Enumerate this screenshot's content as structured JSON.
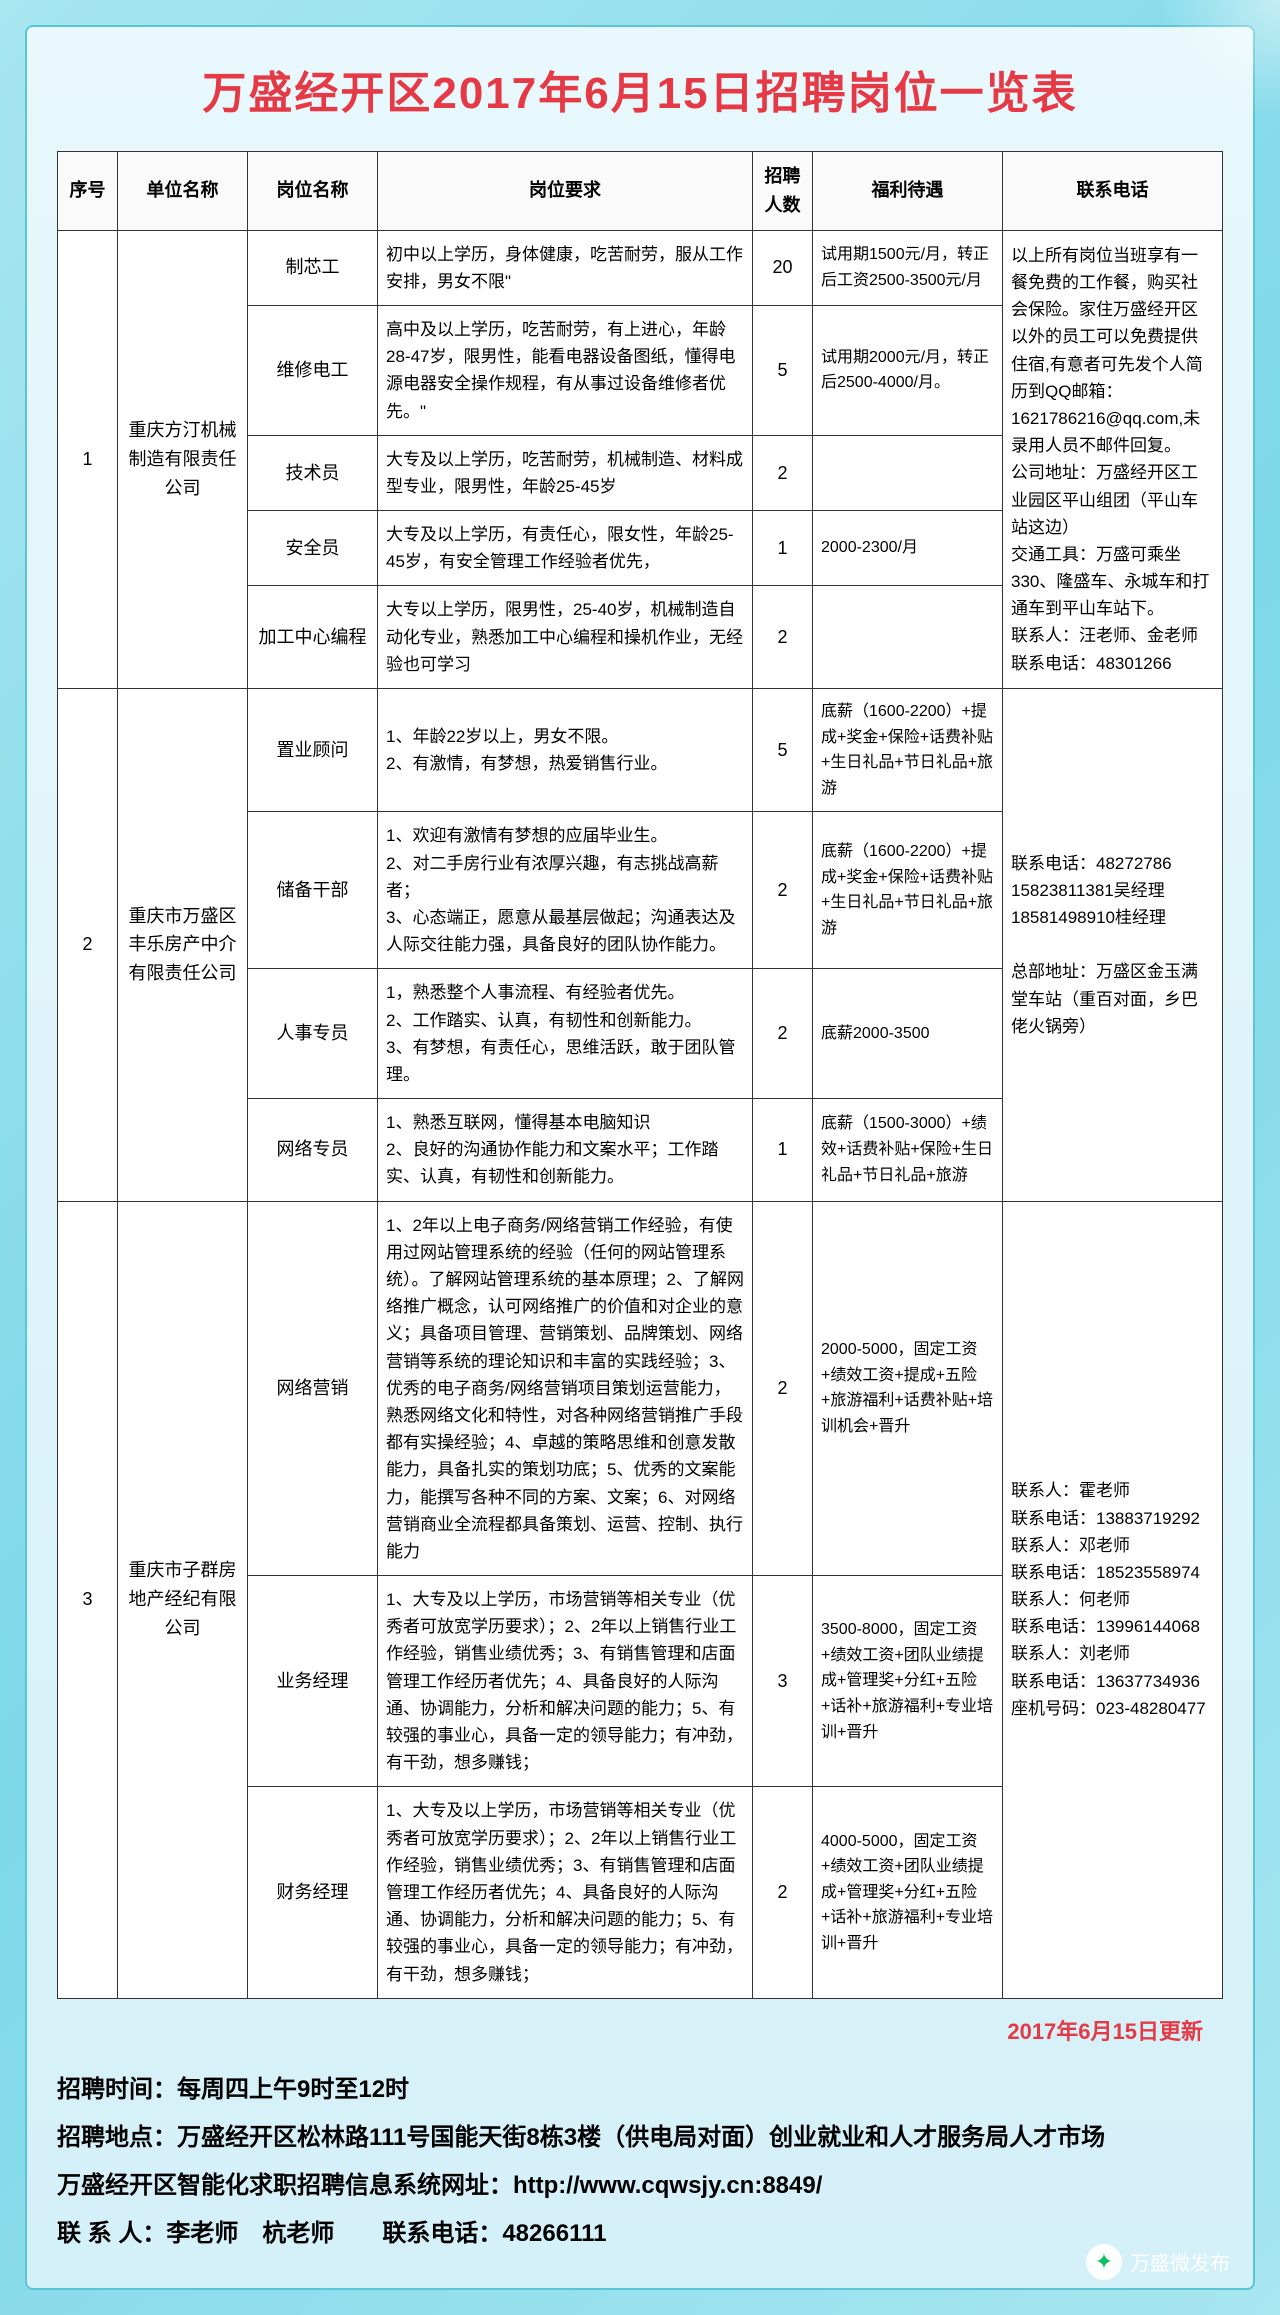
{
  "title": "万盛经开区2017年6月15日招聘岗位一览表",
  "headers": {
    "seq": "序号",
    "company": "单位名称",
    "position": "岗位名称",
    "requirement": "岗位要求",
    "count": "招聘人数",
    "benefit": "福利待遇",
    "contact": "联系电话"
  },
  "groups": [
    {
      "seq": "1",
      "company": "重庆方汀机械制造有限责任公司",
      "contact": "以上所有岗位当班享有一餐免费的工作餐，购买社会保险。家住万盛经开区以外的员工可以免费提供住宿,有意者可先发个人简历到QQ邮箱：1621786216@qq.com,未录用人员不邮件回复。\n公司地址：万盛经开区工业园区平山组团（平山车站这边）\n交通工具：万盛可乘坐330、隆盛车、永城车和打通车到平山车站下。\n联系人：汪老师、金老师　　联系电话：48301266",
      "rows": [
        {
          "pos": "制芯工",
          "req": "初中以上学历，身体健康，吃苦耐劳，服从工作安排，男女不限\"",
          "cnt": "20",
          "ben": "试用期1500元/月，转正后工资2500-3500元/月"
        },
        {
          "pos": "维修电工",
          "req": "高中及以上学历，吃苦耐劳，有上进心，年龄28-47岁，限男性，能看电器设备图纸，懂得电源电器安全操作规程，有从事过设备维修者优先。\"",
          "cnt": "5",
          "ben": "试用期2000元/月，转正后2500-4000/月。"
        },
        {
          "pos": "技术员",
          "req": "大专及以上学历，吃苦耐劳，机械制造、材料成型专业，限男性，年龄25-45岁",
          "cnt": "2",
          "ben": ""
        },
        {
          "pos": "安全员",
          "req": "大专及以上学历，有责任心，限女性，年龄25-45岁，有安全管理工作经验者优先，",
          "cnt": "1",
          "ben": "2000-2300/月"
        },
        {
          "pos": "加工中心编程",
          "req": "大专以上学历，限男性，25-40岁，机械制造自动化专业，熟悉加工中心编程和操机作业，无经验也可学习",
          "cnt": "2",
          "ben": ""
        }
      ]
    },
    {
      "seq": "2",
      "company": "重庆市万盛区丰乐房产中介有限责任公司",
      "contact": "联系电话：48272786\n15823811381吴经理\n18581498910桂经理\n\n总部地址：万盛区金玉满堂车站（重百对面，乡巴佬火锅旁）",
      "rows": [
        {
          "pos": "置业顾问",
          "req": "1、年龄22岁以上，男女不限。\n2、有激情，有梦想，热爱销售行业。",
          "cnt": "5",
          "ben": "底薪（1600-2200）+提成+奖金+保险+话费补贴+生日礼品+节日礼品+旅游"
        },
        {
          "pos": "储备干部",
          "req": "1、欢迎有激情有梦想的应届毕业生。\n2、对二手房行业有浓厚兴趣，有志挑战高薪者；\n3、心态端正，愿意从最基层做起；沟通表达及人际交往能力强，具备良好的团队协作能力。",
          "cnt": "2",
          "ben": "底薪（1600-2200）+提成+奖金+保险+话费补贴+生日礼品+节日礼品+旅游"
        },
        {
          "pos": "人事专员",
          "req": "1，熟悉整个人事流程、有经验者优先。\n2、工作踏实、认真，有韧性和创新能力。\n3、有梦想，有责任心，思维活跃，敢于团队管理。",
          "cnt": "2",
          "ben": "底薪2000-3500"
        },
        {
          "pos": "网络专员",
          "req": "1、熟悉互联网，懂得基本电脑知识\n2、良好的沟通协作能力和文案水平；工作踏实、认真，有韧性和创新能力。",
          "cnt": "1",
          "ben": "底薪（1500-3000）+绩效+话费补贴+保险+生日礼品+节日礼品+旅游"
        }
      ]
    },
    {
      "seq": "3",
      "company": "重庆市子群房地产经纪有限公司",
      "contact": "联系人：霍老师\n联系电话：13883719292\n联系人：邓老师\n联系电话：18523558974\n联系人：何老师\n联系电话：13996144068\n联系人：刘老师\n联系电话：13637734936\n座机号码：023-48280477",
      "rows": [
        {
          "pos": "网络营销",
          "req": "1、2年以上电子商务/网络营销工作经验，有使用过网站管理系统的经验（任何的网站管理系统）。了解网站管理系统的基本原理；2、了解网络推广概念，认可网络推广的价值和对企业的意义；具备项目管理、营销策划、品牌策划、网络营销等系统的理论知识和丰富的实践经验；3、优秀的电子商务/网络营销项目策划运营能力，熟悉网络文化和特性，对各种网络营销推广手段都有实操经验；4、卓越的策略思维和创意发散能力，具备扎实的策划功底；5、优秀的文案能力，能撰写各种不同的方案、文案；6、对网络营销商业全流程都具备策划、运营、控制、执行能力",
          "cnt": "2",
          "ben": "2000-5000，固定工资+绩效工资+提成+五险+旅游福利+话费补贴+培训机会+晋升"
        },
        {
          "pos": "业务经理",
          "req": "1、大专及以上学历，市场营销等相关专业（优秀者可放宽学历要求）；2、2年以上销售行业工作经验，销售业绩优秀；3、有销售管理和店面管理工作经历者优先；4、具备良好的人际沟通、协调能力，分析和解决问题的能力；5、有较强的事业心，具备一定的领导能力；有冲劲，有干劲，想多赚钱；",
          "cnt": "3",
          "ben": "3500-8000，固定工资+绩效工资+团队业绩提成+管理奖+分红+五险+话补+旅游福利+专业培训+晋升"
        },
        {
          "pos": "财务经理",
          "req": "1、大专及以上学历，市场营销等相关专业（优秀者可放宽学历要求）；2、2年以上销售行业工作经验，销售业绩优秀；3、有销售管理和店面管理工作经历者优先；4、具备良好的人际沟通、协调能力，分析和解决问题的能力；5、有较强的事业心，具备一定的领导能力；有冲劲，有干劲，想多赚钱；",
          "cnt": "2",
          "ben": "4000-5000，固定工资+绩效工资+团队业绩提成+管理奖+分红+五险+话补+旅游福利+专业培训+晋升"
        }
      ]
    }
  ],
  "update": "2017年6月15日更新",
  "footer": {
    "time": "招聘时间：每周四上午9时至12时",
    "place": "招聘地点：万盛经开区松林路111号国能天街8栋3楼（供电局对面）创业就业和人才服务局人才市场",
    "url": "万盛经开区智能化求职招聘信息系统网址：http://www.cqwsjy.cn:8849/",
    "person": "联 系 人：李老师　杭老师　　联系电话：48266111"
  },
  "wechat": "万盛微发布"
}
